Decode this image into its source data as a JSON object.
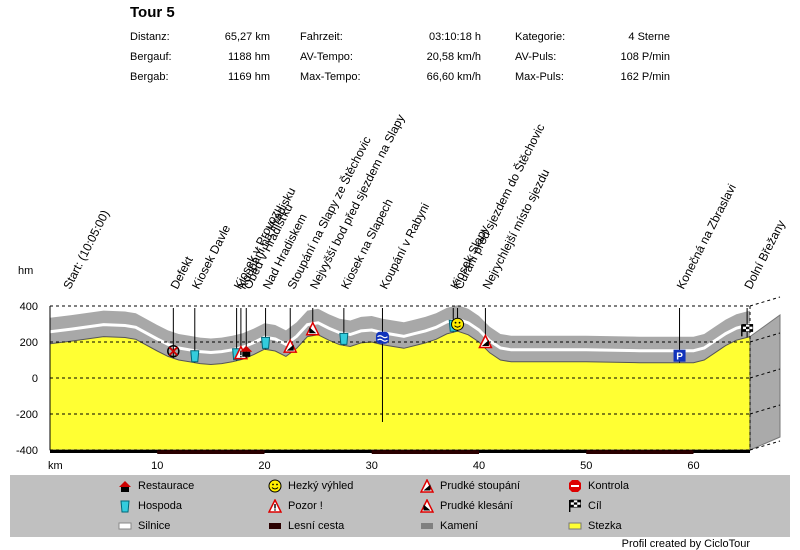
{
  "tour_title": "Tour 5",
  "stats": [
    [
      {
        "label": "Distanz:",
        "value": "65,27 km"
      },
      {
        "label": "Fahrzeit:",
        "value": "03:10:18 h"
      },
      {
        "label": "Kategorie:",
        "value": "4 Sterne"
      }
    ],
    [
      {
        "label": "Bergauf:",
        "value": "1188 hm"
      },
      {
        "label": "AV-Tempo:",
        "value": "20,58 km/h"
      },
      {
        "label": "AV-Puls:",
        "value": "108 P/min"
      }
    ],
    [
      {
        "label": "Bergab:",
        "value": "1169 hm"
      },
      {
        "label": "Max-Tempo:",
        "value": "66,60 km/h"
      },
      {
        "label": "Max-Puls:",
        "value": "162 P/min"
      }
    ]
  ],
  "chart_data": {
    "type": "area",
    "xlabel": "km",
    "ylabel": "hm",
    "xlim": [
      0,
      65.27
    ],
    "ylim": [
      -400,
      400
    ],
    "x_ticks": [
      10,
      20,
      30,
      40,
      50,
      60
    ],
    "y_ticks": [
      400,
      200,
      0,
      -200,
      -400
    ],
    "grid": "horizontal dashed",
    "profile": {
      "x": [
        0,
        2,
        5,
        7,
        8,
        10,
        11,
        12,
        13,
        14,
        15,
        16,
        17,
        18,
        19,
        20,
        21,
        22,
        23,
        24,
        25,
        26,
        27,
        28,
        29,
        30,
        31,
        32,
        33,
        34,
        35,
        36,
        37,
        38,
        39,
        40,
        41,
        42,
        43,
        44,
        45,
        50,
        55,
        58,
        59,
        60,
        61,
        62,
        63,
        64,
        65.27
      ],
      "y": [
        190,
        205,
        230,
        225,
        215,
        150,
        120,
        100,
        90,
        80,
        75,
        80,
        90,
        105,
        130,
        160,
        150,
        120,
        165,
        230,
        240,
        210,
        185,
        175,
        195,
        200,
        185,
        175,
        165,
        180,
        195,
        215,
        245,
        260,
        240,
        200,
        140,
        100,
        90,
        90,
        90,
        90,
        85,
        85,
        85,
        85,
        100,
        140,
        180,
        210,
        230
      ]
    },
    "waypoints": [
      {
        "km": 1.5,
        "label": "Start: (10:05:00)",
        "icon": null
      },
      {
        "km": 11.5,
        "label": "Defekt",
        "icon": "defekt"
      },
      {
        "km": 13.5,
        "label": "Kiosek Davle",
        "icon": "hospoda"
      },
      {
        "km": 17.4,
        "label": "Kiosek v Provozu",
        "icon": "hospoda"
      },
      {
        "km": 17.8,
        "label": "Koupání na Hradisku",
        "icon": "pozor"
      },
      {
        "km": 18.3,
        "label": "Oběd v Hradišťku",
        "icon": "restaurace"
      },
      {
        "km": 20.1,
        "label": "Nad Hradiskem",
        "icon": "hospoda"
      },
      {
        "km": 22.4,
        "label": "Stoupání na Slapy ze Štěchovic",
        "icon": "prudke-stoupani"
      },
      {
        "km": 24.5,
        "label": "Nejvyšší bod před sjezdem na Slapy",
        "icon": "prudke-klesani"
      },
      {
        "km": 27.4,
        "label": "Kiosek na Slapech",
        "icon": "hospoda"
      },
      {
        "km": 31.0,
        "label": "Koupání v Rabyni",
        "icon": "swim"
      },
      {
        "km": 37.6,
        "label": "Kiosek Slapy",
        "icon": "hospoda"
      },
      {
        "km": 38.0,
        "label": "Čurání před sjezdem do Štěchovic",
        "icon": "hezky-vyhled"
      },
      {
        "km": 40.6,
        "label": "Nejrychlejší místo sjezdu",
        "icon": "prudke-stoupani"
      },
      {
        "km": 58.7,
        "label": "Konečná na Zbraslavi",
        "icon": "parking"
      },
      {
        "km": 65.0,
        "label": "Dolní Břežany",
        "icon": "cil"
      }
    ]
  },
  "legend": [
    {
      "icon": "restaurace",
      "label": "Restaurace"
    },
    {
      "icon": "hospoda",
      "label": "Hospoda"
    },
    {
      "icon": "silnice",
      "label": "Silnice"
    },
    {
      "icon": "hezky-vyhled",
      "label": "Hezký výhled"
    },
    {
      "icon": "pozor",
      "label": "Pozor !"
    },
    {
      "icon": "lesni-cesta",
      "label": "Lesní cesta"
    },
    {
      "icon": "prudke-stoupani",
      "label": "Prudké stoupání"
    },
    {
      "icon": "prudke-klesani",
      "label": "Prudké klesání"
    },
    {
      "icon": "kameni",
      "label": "Kamení"
    },
    {
      "icon": "kontrola",
      "label": "Kontrola"
    },
    {
      "icon": "cil",
      "label": "Cíl"
    },
    {
      "icon": "stezka",
      "label": "Stezka"
    }
  ],
  "colors": {
    "ground": "#ffff33",
    "ground_side": "#aaaaaa",
    "ground_bottom": "#8a8a8a",
    "terrain": "#a8a8a8",
    "road": "#ffffff",
    "forest": "#2a0000",
    "legend_bg": "#c0c0c0"
  },
  "credit": "Profil created by CicloTour"
}
